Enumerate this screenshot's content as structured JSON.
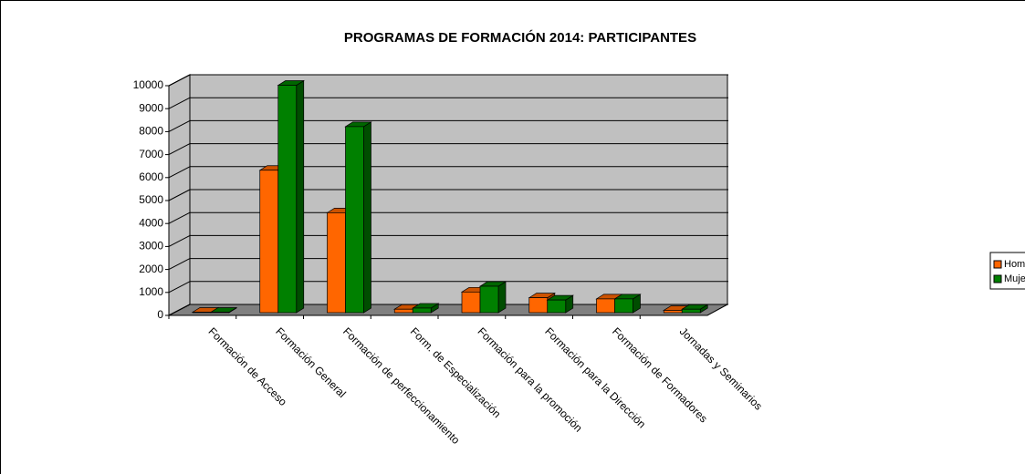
{
  "chart_data": {
    "type": "bar3d",
    "title": "PROGRAMAS DE FORMACIÓN 2014: PARTICIPANTES",
    "categories": [
      "Formación de Acceso",
      "Formación General",
      "Formación de perfeccionamiento",
      "Form. de Especialización",
      "Formación para la promoción",
      "Formación para la Dirección",
      "Formación de Formadores",
      "Jornadas y Seminarios"
    ],
    "series": [
      {
        "name": "Hombres",
        "color": "#ff6600",
        "values": [
          20,
          6200,
          4350,
          150,
          900,
          650,
          600,
          100
        ]
      },
      {
        "name": "Mujeres",
        "color": "#008000",
        "values": [
          20,
          9900,
          8100,
          200,
          1150,
          550,
          600,
          150
        ]
      }
    ],
    "ylim": [
      0,
      10000
    ],
    "yticks": [
      0,
      1000,
      2000,
      3000,
      4000,
      5000,
      6000,
      7000,
      8000,
      9000,
      10000
    ],
    "grid": true,
    "legend": "right"
  }
}
